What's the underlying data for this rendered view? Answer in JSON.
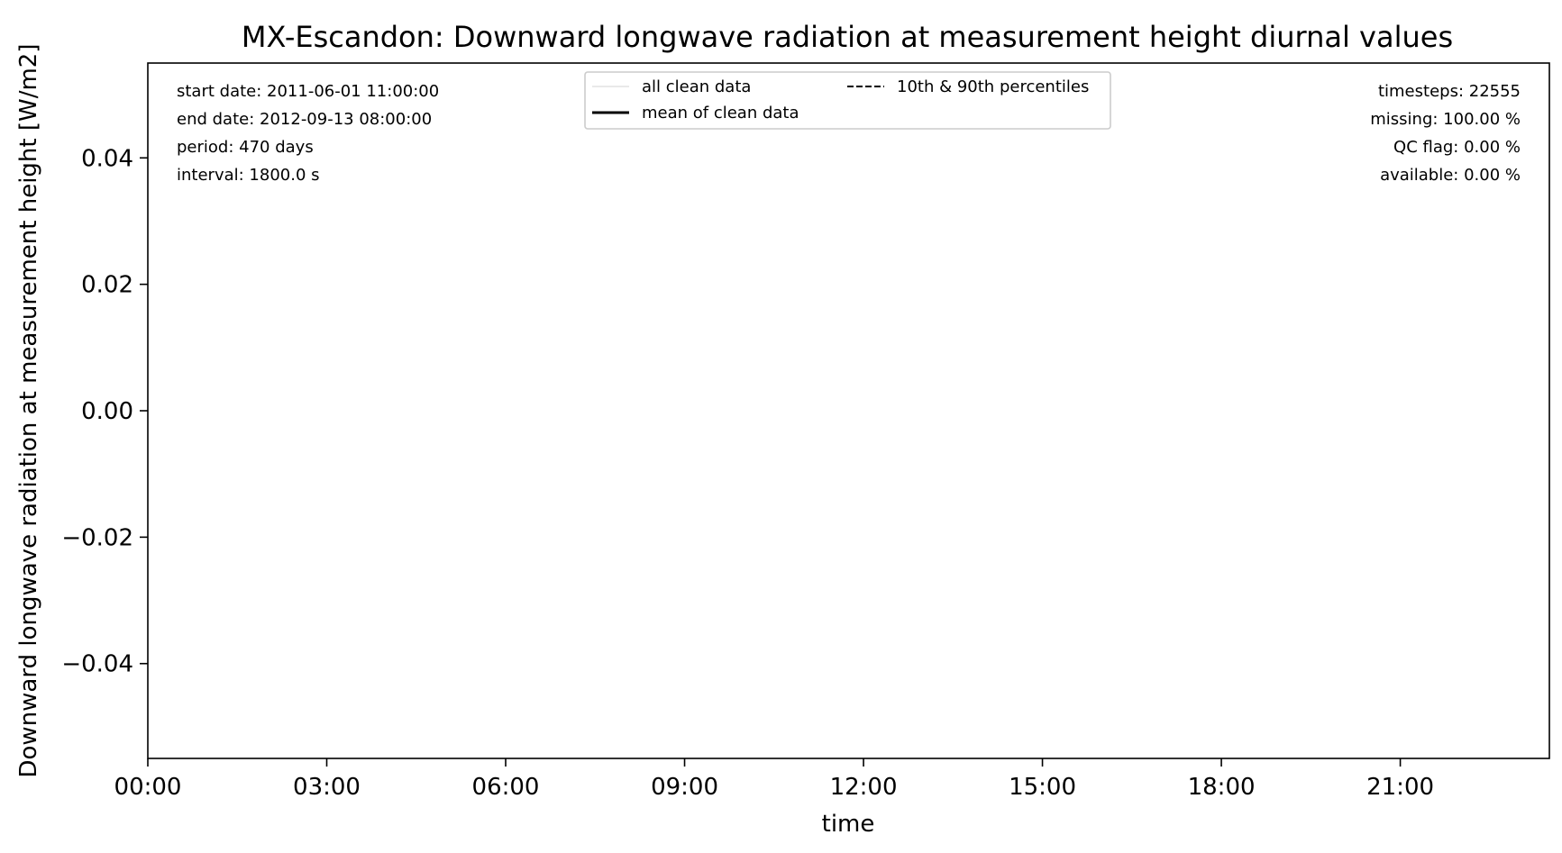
{
  "chart_data": {
    "type": "line",
    "title": "MX-Escandon: Downward longwave radiation at measurement height diurnal values",
    "xlabel": "time",
    "ylabel": "Downward longwave radiation at measurement height [W/m2]",
    "xlim": [
      0,
      23.5
    ],
    "ylim": [
      -0.055,
      0.055
    ],
    "x_ticks": [
      0,
      3,
      6,
      9,
      12,
      15,
      18,
      21
    ],
    "x_tick_labels": [
      "00:00",
      "03:00",
      "06:00",
      "09:00",
      "12:00",
      "15:00",
      "18:00",
      "21:00"
    ],
    "y_ticks": [
      0.04,
      0.02,
      0.0,
      -0.02,
      -0.04
    ],
    "y_tick_labels": [
      "0.04",
      "0.02",
      "0.00",
      "−0.02",
      "−0.04"
    ],
    "grid": false,
    "legend_placement": "upper-center",
    "legend": [
      {
        "label": "all clean data",
        "style": "thin",
        "color": "#d3d3d3"
      },
      {
        "label": "10th & 90th percentiles",
        "style": "dashed",
        "color": "#000000"
      },
      {
        "label": "mean of clean data",
        "style": "thick",
        "color": "#000000"
      }
    ],
    "series": [
      {
        "name": "all clean data",
        "values": []
      },
      {
        "name": "mean of clean data",
        "values": []
      },
      {
        "name": "10th & 90th percentiles",
        "values": []
      }
    ],
    "info_left": [
      "start date: 2011-06-01 11:00:00",
      "end date: 2012-09-13 08:00:00",
      "period: 470 days",
      "interval: 1800.0 s"
    ],
    "info_right": [
      "timesteps: 22555",
      "missing: 100.00 %",
      "QC flag: 0.00 %",
      "available: 0.00 %"
    ]
  }
}
